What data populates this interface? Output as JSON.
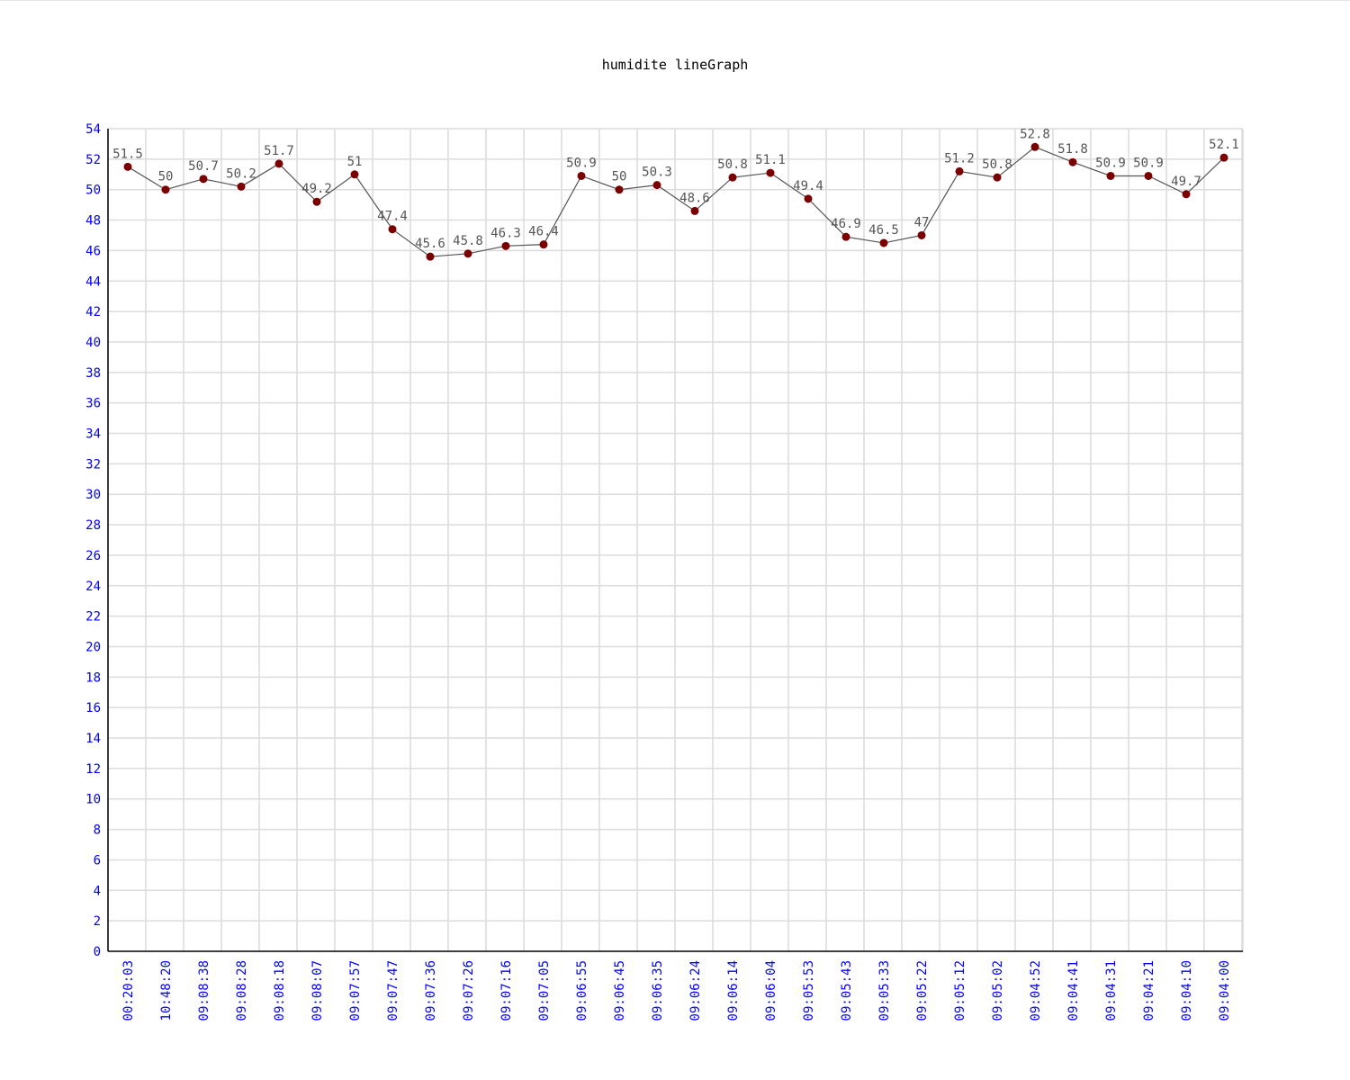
{
  "colors": {
    "axis_text": "#0000ff",
    "grid": "#dcdcdc",
    "axis_line": "#000000",
    "series_line": "#555555",
    "marker": "#7a0000",
    "data_label": "#555555",
    "title": "#000000"
  },
  "chart_data": {
    "type": "line",
    "title": "humidite lineGraph",
    "xlabel": "",
    "ylabel": "",
    "ylim": [
      0,
      54
    ],
    "y_step": 2,
    "grid": true,
    "categories": [
      "00:20:03",
      "10:48:20",
      "09:08:38",
      "09:08:28",
      "09:08:18",
      "09:08:07",
      "09:07:57",
      "09:07:47",
      "09:07:36",
      "09:07:26",
      "09:07:16",
      "09:07:05",
      "09:06:55",
      "09:06:45",
      "09:06:35",
      "09:06:24",
      "09:06:14",
      "09:06:04",
      "09:05:53",
      "09:05:43",
      "09:05:33",
      "09:05:22",
      "09:05:12",
      "09:05:02",
      "09:04:52",
      "09:04:41",
      "09:04:31",
      "09:04:21",
      "09:04:10",
      "09:04:00"
    ],
    "series": [
      {
        "values": [
          51.5,
          50,
          50.7,
          50.2,
          51.7,
          49.2,
          51,
          47.4,
          45.6,
          45.8,
          46.3,
          46.4,
          50.9,
          50,
          50.3,
          48.6,
          50.8,
          51.1,
          49.4,
          46.9,
          46.5,
          47,
          51.2,
          50.8,
          52.8,
          51.8,
          50.9,
          50.9,
          49.7,
          52.1
        ]
      }
    ],
    "data_labels": [
      "51.5",
      "50",
      "50.7",
      "50.2",
      "51.7",
      "49.2",
      "51",
      "47.4",
      "45.6",
      "45.8",
      "46.3",
      "46.4",
      "50.9",
      "50",
      "50.3",
      "48.6",
      "50.8",
      "51.1",
      "49.4",
      "46.9",
      "46.5",
      "47",
      "51.2",
      "50.8",
      "52.8",
      "51.8",
      "50.9",
      "50.9",
      "49.7",
      "52.1"
    ]
  }
}
